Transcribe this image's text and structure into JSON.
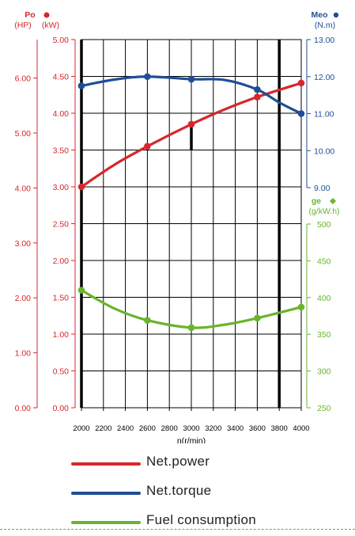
{
  "chart_data": {
    "type": "line",
    "xlabel": "n(r/min)",
    "x_ticks": [
      2000,
      2200,
      2400,
      2600,
      2800,
      3000,
      3200,
      3400,
      3600,
      3800,
      4000
    ],
    "xlim": [
      2000,
      4000
    ],
    "grid": true,
    "axes": {
      "power_hp": {
        "label_top": "Po",
        "label_unit": "(HP)",
        "ticks": [
          "0.00",
          "1.00",
          "2.00",
          "3.00",
          "4.00",
          "5.00",
          "6.00"
        ],
        "values": [
          0,
          1,
          2,
          3,
          4,
          5,
          6
        ],
        "range": [
          0,
          6.7
        ]
      },
      "power_kw": {
        "label_unit": "(kW)",
        "ticks": [
          "0.00",
          "0.50",
          "1.00",
          "1.50",
          "2.00",
          "2.50",
          "3.00",
          "3.50",
          "4.00",
          "4.50",
          "5.00"
        ],
        "values": [
          0,
          0.5,
          1,
          1.5,
          2,
          2.5,
          3,
          3.5,
          4,
          4.5,
          5
        ],
        "range": [
          0,
          5
        ]
      },
      "torque": {
        "label_top": "Meo",
        "label_unit": "(N.m)",
        "ticks": [
          "9.00",
          "10.00",
          "11.00",
          "12.00",
          "13.00"
        ],
        "values": [
          9,
          10,
          11,
          12,
          13
        ],
        "range": [
          9,
          13
        ]
      },
      "fuel": {
        "label_top": "ge",
        "label_unit": "(g/kW.h)",
        "ticks": [
          "250",
          "300",
          "350",
          "400",
          "450",
          "500"
        ],
        "values": [
          250,
          300,
          350,
          400,
          450,
          500
        ],
        "range": [
          250,
          500
        ]
      }
    },
    "series": [
      {
        "name": "Net.power",
        "axis": "power_kw",
        "color": "#d9262c",
        "points": [
          [
            2000,
            3.0
          ],
          [
            2300,
            3.3
          ],
          [
            2600,
            3.55
          ],
          [
            3000,
            3.85
          ],
          [
            3300,
            4.05
          ],
          [
            3600,
            4.22
          ],
          [
            4000,
            4.41
          ]
        ],
        "markers": [
          [
            2000,
            3.0
          ],
          [
            2600,
            3.55
          ],
          [
            3000,
            3.85
          ],
          [
            3600,
            4.22
          ],
          [
            4000,
            4.41
          ]
        ]
      },
      {
        "name": "Net.torque",
        "axis": "torque",
        "color": "#1f4e96",
        "points": [
          [
            2000,
            11.75
          ],
          [
            2300,
            11.92
          ],
          [
            2600,
            12.0
          ],
          [
            3000,
            11.93
          ],
          [
            3300,
            11.91
          ],
          [
            3600,
            11.65
          ],
          [
            3800,
            11.3
          ],
          [
            4000,
            11.0
          ]
        ],
        "markers": [
          [
            2000,
            11.75
          ],
          [
            2600,
            12.0
          ],
          [
            3000,
            11.93
          ],
          [
            3600,
            11.65
          ],
          [
            4000,
            11.0
          ]
        ]
      },
      {
        "name": "Fuel consumption",
        "axis": "fuel",
        "color": "#6ab42d",
        "points": [
          [
            2000,
            410
          ],
          [
            2300,
            385
          ],
          [
            2600,
            369
          ],
          [
            3000,
            359
          ],
          [
            3300,
            363
          ],
          [
            3600,
            372
          ],
          [
            4000,
            387
          ]
        ],
        "markers": [
          [
            2000,
            410
          ],
          [
            2600,
            369
          ],
          [
            3000,
            359
          ],
          [
            3600,
            372
          ],
          [
            4000,
            387
          ]
        ]
      }
    ],
    "vertical_markers": [
      2000,
      3800
    ],
    "marker_segment": {
      "x": 3000,
      "from_kw": 3.5,
      "to_kw": 3.85
    }
  },
  "legend": [
    {
      "label": "Net.power",
      "color": "#d9262c"
    },
    {
      "label": "Net.torque",
      "color": "#1f4e96"
    },
    {
      "label": "Fuel consumption",
      "color": "#6ab42d"
    }
  ]
}
